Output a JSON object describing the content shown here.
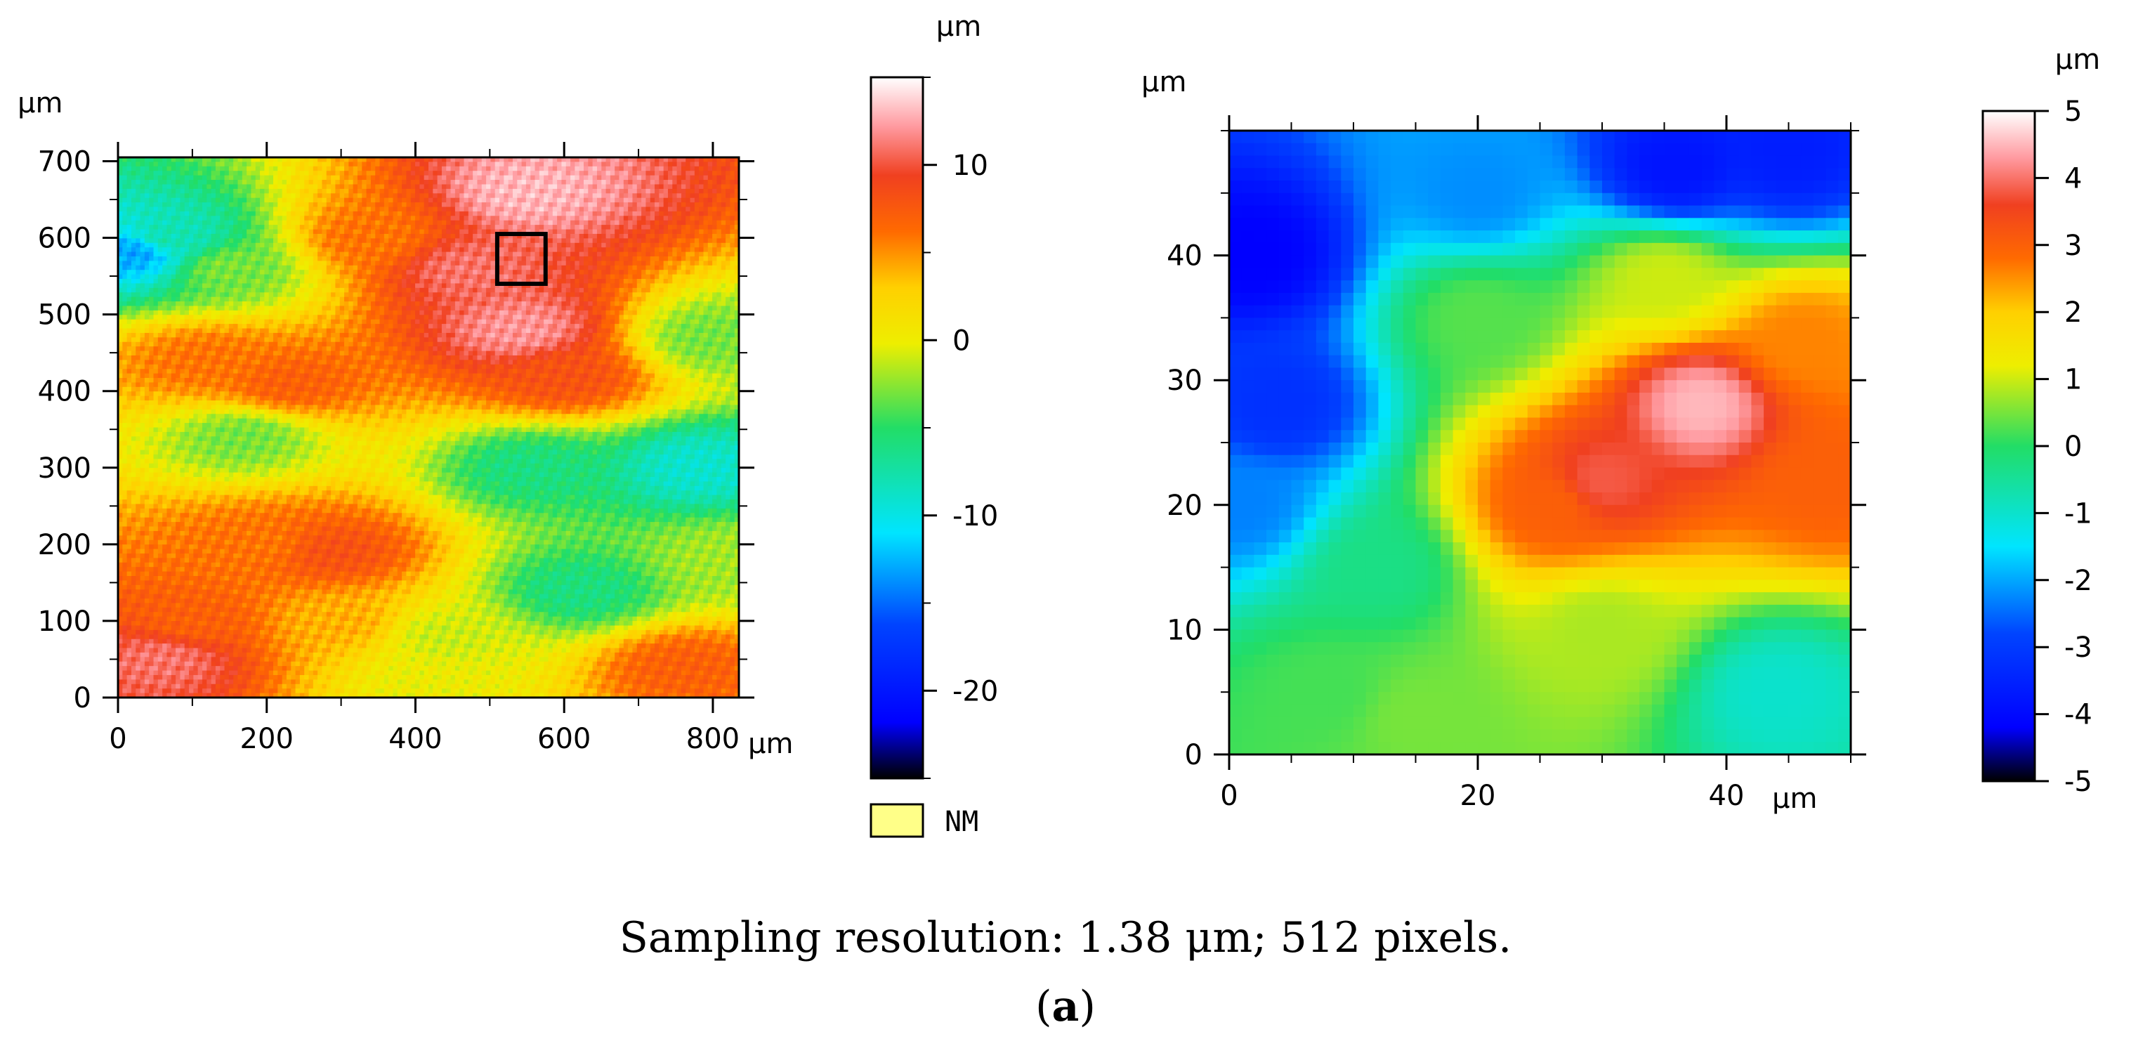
{
  "caption": {
    "line1": "Sampling resolution: 1.38 μm; 512 pixels.",
    "open_paren": "(",
    "label": "a",
    "close_paren": ")"
  },
  "colormap_stops": [
    {
      "t": 0.0,
      "color": "#000000"
    },
    {
      "t": 0.08,
      "color": "#0000ff"
    },
    {
      "t": 0.22,
      "color": "#0044ff"
    },
    {
      "t": 0.35,
      "color": "#00e5ff"
    },
    {
      "t": 0.5,
      "color": "#22dd66"
    },
    {
      "t": 0.62,
      "color": "#eeee00"
    },
    {
      "t": 0.7,
      "color": "#ffd000"
    },
    {
      "t": 0.78,
      "color": "#ff6a00"
    },
    {
      "t": 0.86,
      "color": "#f04020"
    },
    {
      "t": 0.93,
      "color": "#ff9aa0"
    },
    {
      "t": 1.0,
      "color": "#ffffff"
    }
  ],
  "selection_box_color": "#000000",
  "nm_swatch_color": "#ffff88",
  "chart_data": [
    {
      "type": "heatmap",
      "title": "",
      "unit": "μm",
      "xlabel": "μm",
      "ylabel": "μm",
      "x_ticks": [
        "0",
        "200",
        "400",
        "600",
        "800"
      ],
      "y_ticks": [
        "0",
        "100",
        "200",
        "300",
        "400",
        "500",
        "600",
        "700"
      ],
      "xlim": [
        0,
        835
      ],
      "ylim": [
        0,
        705
      ],
      "color_range": [
        -25,
        15
      ],
      "colorbar_label": "μm",
      "colorbar_ticks": [
        "10",
        "0",
        "-10",
        "-20"
      ],
      "colorbar_tick_values": [
        10,
        0,
        -10,
        -20
      ],
      "selection_box": {
        "x0": 510,
        "x1": 575,
        "y0": 540,
        "y1": 605
      },
      "legend": {
        "label": "NM"
      },
      "features": [
        {
          "x": 420,
          "y": 20,
          "v": 0
        },
        {
          "x": 550,
          "y": 660,
          "v": 13
        },
        {
          "x": 540,
          "y": 480,
          "v": 12
        },
        {
          "x": 470,
          "y": 560,
          "v": 11
        },
        {
          "x": 600,
          "y": 420,
          "v": 8
        },
        {
          "x": 230,
          "y": 410,
          "v": 7
        },
        {
          "x": 120,
          "y": 440,
          "v": 6
        },
        {
          "x": 340,
          "y": 600,
          "v": 6
        },
        {
          "x": 20,
          "y": 580,
          "v": -13
        },
        {
          "x": 70,
          "y": 600,
          "v": -8
        },
        {
          "x": 150,
          "y": 560,
          "v": -3
        },
        {
          "x": 170,
          "y": 340,
          "v": -3
        },
        {
          "x": 560,
          "y": 300,
          "v": -6
        },
        {
          "x": 780,
          "y": 300,
          "v": -9
        },
        {
          "x": 800,
          "y": 470,
          "v": -3
        },
        {
          "x": 290,
          "y": 190,
          "v": 8
        },
        {
          "x": 190,
          "y": 200,
          "v": 6
        },
        {
          "x": 100,
          "y": 100,
          "v": 7
        },
        {
          "x": 60,
          "y": 50,
          "v": 11
        },
        {
          "x": 300,
          "y": 100,
          "v": 4
        },
        {
          "x": 620,
          "y": 140,
          "v": -6
        },
        {
          "x": 760,
          "y": 40,
          "v": 7
        },
        {
          "x": 820,
          "y": 180,
          "v": -2
        },
        {
          "x": 440,
          "y": 80,
          "v": -1
        }
      ]
    },
    {
      "type": "heatmap",
      "title": "",
      "unit": "μm",
      "xlabel": "μm",
      "ylabel": "μm",
      "x_ticks": [
        "0",
        "20",
        "40"
      ],
      "y_ticks": [
        "0",
        "10",
        "20",
        "30",
        "40"
      ],
      "xlim": [
        0,
        50
      ],
      "ylim": [
        0,
        50
      ],
      "color_range": [
        -5,
        5
      ],
      "colorbar_label": "μm",
      "colorbar_ticks": [
        "5",
        "4",
        "3",
        "2",
        "1",
        "0",
        "-1",
        "-2",
        "-3",
        "-4",
        "-5"
      ],
      "colorbar_tick_values": [
        5,
        4,
        3,
        2,
        1,
        0,
        -1,
        -2,
        -3,
        -4,
        -5
      ],
      "grid_size": 50,
      "features": [
        {
          "x": 2,
          "y": 40,
          "v": -4.2
        },
        {
          "x": 4,
          "y": 28,
          "v": -3.2
        },
        {
          "x": 1,
          "y": 20,
          "v": -2.3
        },
        {
          "x": 20,
          "y": 45,
          "v": -2.2
        },
        {
          "x": 36,
          "y": 47,
          "v": -3.8
        },
        {
          "x": 45,
          "y": 48,
          "v": -3.6
        },
        {
          "x": 12,
          "y": 15,
          "v": -0.3
        },
        {
          "x": 8,
          "y": 5,
          "v": 0.2
        },
        {
          "x": 20,
          "y": 35,
          "v": 0.3
        },
        {
          "x": 38,
          "y": 28,
          "v": 4.5
        },
        {
          "x": 30,
          "y": 22,
          "v": 3.8
        },
        {
          "x": 26,
          "y": 20,
          "v": 3
        },
        {
          "x": 48,
          "y": 22,
          "v": 3
        },
        {
          "x": 46,
          "y": 33,
          "v": 2.6
        },
        {
          "x": 44,
          "y": 5,
          "v": -1
        },
        {
          "x": 30,
          "y": 10,
          "v": 0.8
        },
        {
          "x": 15,
          "y": 3,
          "v": 0.5
        },
        {
          "x": 35,
          "y": 38,
          "v": 1
        }
      ]
    }
  ]
}
